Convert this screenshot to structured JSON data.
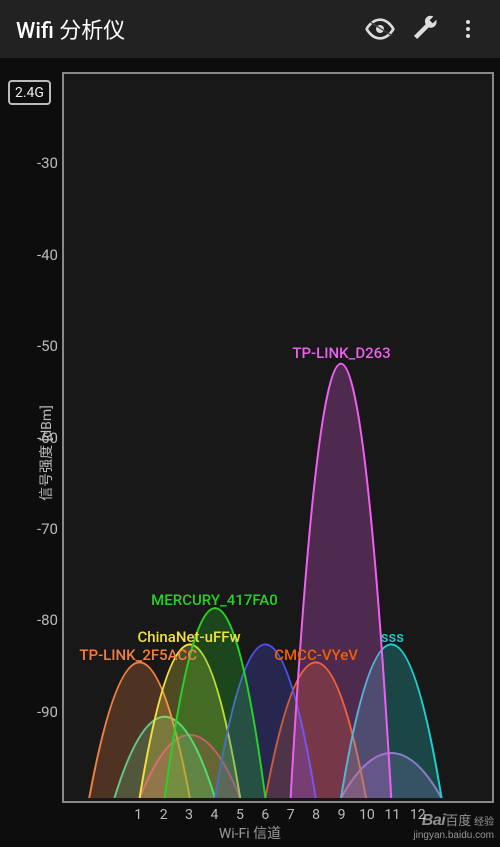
{
  "appbar": {
    "title": "Wifi 分析仪",
    "actions": {
      "eye": "eye-icon",
      "wrench": "wrench-icon",
      "overflow": "overflow-icon"
    }
  },
  "chart": {
    "type": "area",
    "background_color": "#181818",
    "frame_color": "#888888",
    "grid_color": "#3a3a3a",
    "band_badge": "2.4G",
    "ylabel": "信号强度 [dBm]",
    "xlabel": "Wi-Fi 信道",
    "ylabel_fontsize": 14,
    "xlabel_fontsize": 14,
    "tick_fontsize": 15,
    "ylim": [
      -100,
      -20
    ],
    "yticks": [
      -30,
      -40,
      -50,
      -60,
      -70,
      -80,
      -90
    ],
    "xlim": [
      -2,
      15
    ],
    "xticks": [
      1,
      2,
      3,
      4,
      5,
      6,
      7,
      8,
      9,
      10,
      11,
      12
    ],
    "fill_opacity": 0.25,
    "stroke_width": 2,
    "networks": [
      {
        "ssid": "TP-LINK_D263",
        "channel": 9,
        "dbm": -52,
        "color": "#f060f0"
      },
      {
        "ssid": "MERCURY_417FA0",
        "channel": 4,
        "dbm": -79,
        "color": "#28d028"
      },
      {
        "ssid": "ChinaNet-uFFw",
        "channel": 3,
        "dbm": -83,
        "color": "#f0e040"
      },
      {
        "ssid": "TP-LINK_2F5ACC",
        "channel": 1,
        "dbm": -85,
        "color": "#f08040"
      },
      {
        "ssid": "CMCC-VYeV",
        "channel": 8,
        "dbm": -85,
        "color": "#f06000"
      },
      {
        "ssid": "sss",
        "channel": 11,
        "dbm": -83,
        "color": "#20d0d0"
      },
      {
        "ssid": "",
        "channel": 6,
        "dbm": -83,
        "color": "#5050f0"
      },
      {
        "ssid": "",
        "channel": 3,
        "dbm": -93,
        "color": "#ff0090"
      },
      {
        "ssid": "",
        "channel": 11,
        "dbm": -95,
        "color": "#b060c0"
      },
      {
        "ssid": "",
        "channel": 2,
        "dbm": -91,
        "color": "#30e0a0"
      }
    ],
    "channel_span": 2
  },
  "watermark": {
    "brand": "Bai百度 经验",
    "url": "jingyan.baidu.com"
  }
}
